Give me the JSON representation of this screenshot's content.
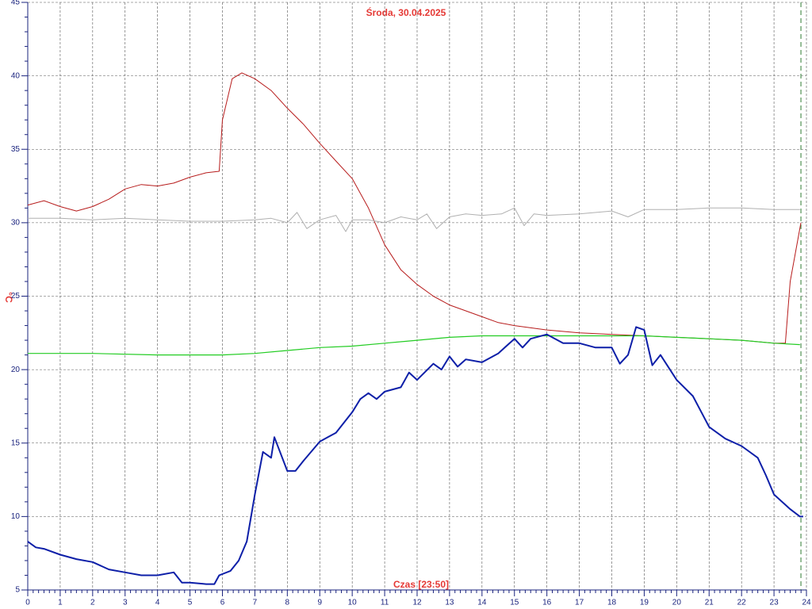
{
  "chart_data": {
    "type": "line",
    "title": "Środa, 30.04.2025",
    "ylabel": "°C",
    "xlabel": "Czas [23:50]",
    "xlim": [
      0,
      24
    ],
    "ylim": [
      5,
      45
    ],
    "xticks": [
      0,
      1,
      2,
      3,
      4,
      5,
      6,
      7,
      8,
      9,
      10,
      11,
      12,
      13,
      14,
      15,
      16,
      17,
      18,
      19,
      20,
      21,
      22,
      23,
      24
    ],
    "yticks": [
      5,
      10,
      15,
      20,
      25,
      30,
      35,
      40,
      45
    ],
    "grid": true,
    "marker_x": 23.83,
    "marker_color": "#2e7d32",
    "series": [
      {
        "color": "#b71c1c",
        "width": 1,
        "x": [
          0,
          0.5,
          1,
          1.5,
          2,
          2.5,
          3,
          3.5,
          4,
          4.5,
          5,
          5.5,
          5.9,
          6.0,
          6.3,
          6.6,
          7,
          7.5,
          8,
          8.5,
          9,
          9.5,
          10,
          10.5,
          11,
          11.5,
          12,
          12.5,
          13,
          13.5,
          14,
          14.5,
          15,
          16,
          17,
          18,
          19,
          20,
          21,
          22,
          23,
          23.35,
          23.5,
          23.83
        ],
        "values": [
          31.2,
          31.5,
          31.1,
          30.8,
          31.1,
          31.6,
          32.3,
          32.6,
          32.5,
          32.7,
          33.1,
          33.4,
          33.5,
          37.0,
          39.8,
          40.2,
          39.8,
          39.0,
          37.8,
          36.7,
          35.4,
          34.2,
          33.0,
          31.0,
          28.5,
          26.8,
          25.8,
          25.0,
          24.4,
          24.0,
          23.6,
          23.2,
          23.0,
          22.7,
          22.5,
          22.4,
          22.3,
          22.2,
          22.1,
          22.0,
          21.8,
          21.8,
          26.0,
          30.0
        ]
      },
      {
        "color": "#b0b0b0",
        "width": 1,
        "x": [
          0,
          1,
          2,
          3,
          4,
          5,
          6,
          7,
          7.5,
          8,
          8.3,
          8.6,
          9,
          9.5,
          9.8,
          10,
          10.5,
          11,
          11.5,
          12,
          12.3,
          12.6,
          13,
          13.5,
          14,
          14.6,
          15,
          15.3,
          15.6,
          16,
          17,
          18,
          18.5,
          19,
          20,
          21,
          22,
          23,
          23.8
        ],
        "values": [
          30.3,
          30.3,
          30.2,
          30.3,
          30.2,
          30.1,
          30.1,
          30.2,
          30.3,
          30.0,
          30.7,
          29.6,
          30.2,
          30.5,
          29.4,
          30.2,
          30.2,
          30.0,
          30.4,
          30.2,
          30.6,
          29.6,
          30.4,
          30.6,
          30.5,
          30.6,
          31.0,
          29.8,
          30.6,
          30.5,
          30.6,
          30.8,
          30.4,
          30.9,
          30.9,
          31.0,
          31.0,
          30.9,
          30.9
        ]
      },
      {
        "color": "#22cc22",
        "width": 1.2,
        "x": [
          0,
          2,
          4,
          5,
          6,
          7,
          8,
          9,
          10,
          11,
          12,
          13,
          14,
          15,
          16,
          17,
          18,
          19,
          20,
          21,
          22,
          23,
          23.8
        ],
        "values": [
          21.1,
          21.1,
          21.0,
          21.0,
          21.0,
          21.1,
          21.3,
          21.5,
          21.6,
          21.8,
          22.0,
          22.2,
          22.3,
          22.3,
          22.3,
          22.3,
          22.3,
          22.3,
          22.2,
          22.1,
          22.0,
          21.8,
          21.7
        ]
      },
      {
        "color": "#0d1fa8",
        "width": 2,
        "x": [
          0,
          0.25,
          0.5,
          1,
          1.5,
          2,
          2.5,
          3,
          3.5,
          4,
          4.5,
          4.75,
          5,
          5.5,
          5.75,
          5.9,
          6.25,
          6.5,
          6.75,
          7.0,
          7.25,
          7.5,
          7.6,
          8,
          8.25,
          8.5,
          9,
          9.25,
          9.5,
          10,
          10.25,
          10.5,
          10.75,
          11,
          11.5,
          11.75,
          12,
          12.5,
          12.75,
          13,
          13.25,
          13.5,
          14,
          14.5,
          15,
          15.25,
          15.5,
          16,
          16.5,
          17,
          17.5,
          18,
          18.25,
          18.5,
          18.75,
          19,
          19.25,
          19.5,
          20,
          20.5,
          21,
          21.5,
          22,
          22.5,
          22.75,
          23,
          23.5,
          23.8,
          23.9
        ],
        "values": [
          8.3,
          7.9,
          7.8,
          7.4,
          7.1,
          6.9,
          6.4,
          6.2,
          6.0,
          6.0,
          6.2,
          5.5,
          5.5,
          5.4,
          5.4,
          6.0,
          6.3,
          7.0,
          8.3,
          11.5,
          14.4,
          14.0,
          15.4,
          13.1,
          13.1,
          13.8,
          15.1,
          15.4,
          15.7,
          17.1,
          18.0,
          18.4,
          18.0,
          18.5,
          18.8,
          19.8,
          19.3,
          20.4,
          20.0,
          20.9,
          20.2,
          20.7,
          20.5,
          21.1,
          22.1,
          21.5,
          22.1,
          22.4,
          21.8,
          21.8,
          21.5,
          21.5,
          20.4,
          21.0,
          22.9,
          22.7,
          20.3,
          21.0,
          19.3,
          18.2,
          16.1,
          15.3,
          14.8,
          14.0,
          12.8,
          11.5,
          10.5,
          10.0,
          10.0
        ]
      }
    ]
  }
}
